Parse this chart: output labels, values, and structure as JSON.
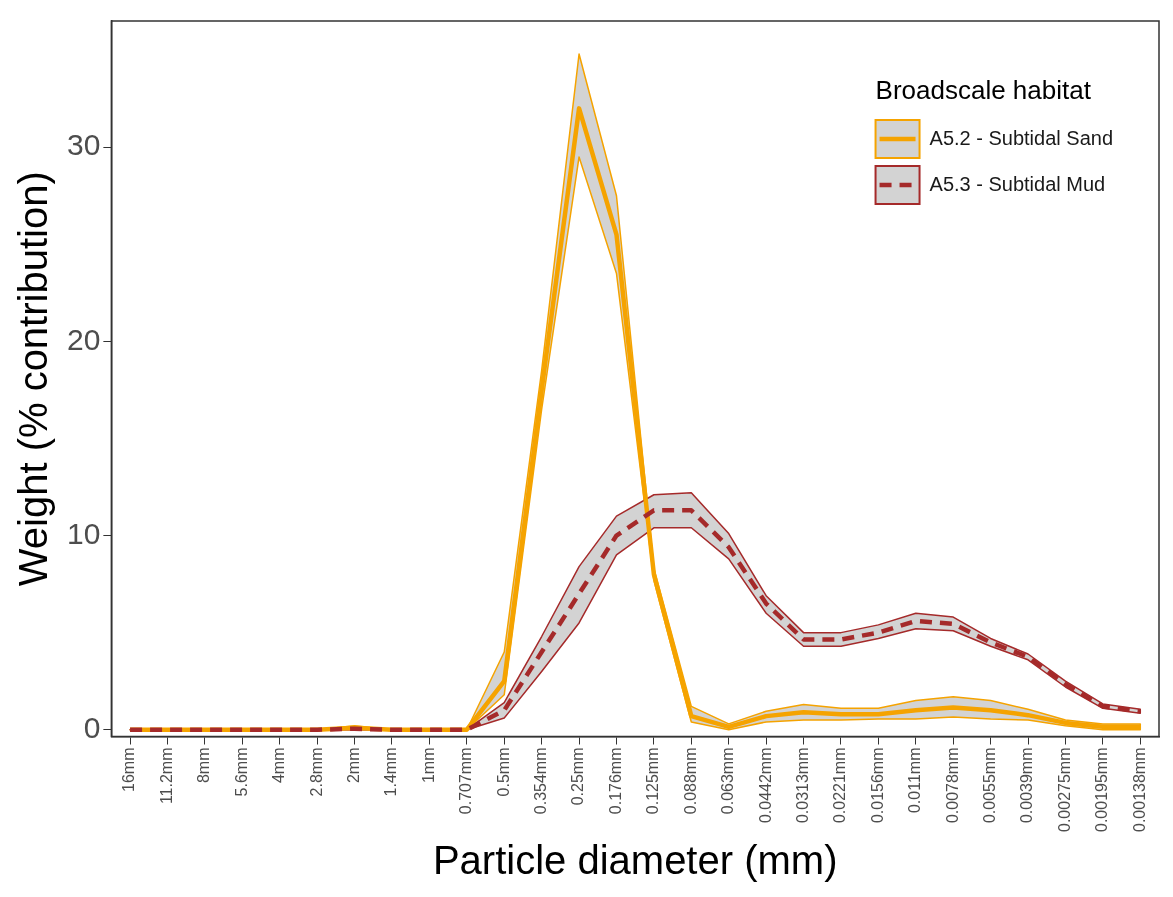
{
  "chart_data": {
    "type": "line",
    "xlabel": "Particle diameter (mm)",
    "ylabel": "Weight (% contribution)",
    "legend_title": "Broadscale habitat",
    "legend": "top right",
    "marker": "none",
    "categories": [
      "16mm",
      "11.2mm",
      "8mm",
      "5.6mm",
      "4mm",
      "2.8mm",
      "2mm",
      "1.4mm",
      "1mm",
      "0.707mm",
      "0.5mm",
      "0.354mm",
      "0.25mm",
      "0.176mm",
      "0.125mm",
      "0.088mm",
      "0.063mm",
      "0.0442mm",
      "0.0313mm",
      "0.0221mm",
      "0.0156mm",
      "0.011mm",
      "0.0078mm",
      "0.0055mm",
      "0.0039mm",
      "0.00275mm",
      "0.00195mm",
      "0.00138mm"
    ],
    "ylim": [
      -0.35,
      36.5
    ],
    "yticks": [
      0,
      10,
      20,
      30
    ],
    "series": [
      {
        "name": "A5.2 - Subtidal Sand",
        "color": "#f5a300",
        "line_style": "solid",
        "values": [
          0,
          0,
          0,
          0,
          0,
          0,
          0.1,
          0,
          0,
          0,
          2.5,
          17.5,
          32.0,
          25.5,
          8.0,
          0.7,
          0.15,
          0.7,
          0.9,
          0.8,
          0.8,
          1.0,
          1.15,
          1.0,
          0.75,
          0.35,
          0.15,
          0.15
        ],
        "lower": [
          0,
          0,
          0,
          0,
          0,
          0,
          0,
          0,
          0,
          0,
          1.8,
          16.5,
          29.5,
          23.5,
          7.7,
          0.4,
          0,
          0.4,
          0.5,
          0.5,
          0.55,
          0.55,
          0.65,
          0.55,
          0.5,
          0.2,
          0,
          0
        ],
        "upper": [
          0,
          0,
          0,
          0,
          0,
          0,
          0.2,
          0,
          0,
          0,
          4.0,
          18.5,
          34.8,
          27.5,
          8.3,
          1.2,
          0.3,
          0.95,
          1.3,
          1.1,
          1.1,
          1.5,
          1.7,
          1.5,
          1.05,
          0.5,
          0.3,
          0.3
        ]
      },
      {
        "name": "A5.3 - Subtidal Mud",
        "color": "#a52a2a",
        "line_style": "dashed",
        "values": [
          0,
          0,
          0,
          0,
          0,
          0,
          0.05,
          0,
          0,
          0,
          1.0,
          4.0,
          7.0,
          10.0,
          11.3,
          11.3,
          9.4,
          6.5,
          4.65,
          4.65,
          5.0,
          5.6,
          5.45,
          4.5,
          3.75,
          2.35,
          1.2,
          0.95
        ],
        "lower": [
          0,
          0,
          0,
          0,
          0,
          0,
          0,
          0,
          0,
          0,
          0.6,
          3.0,
          5.5,
          9.0,
          10.4,
          10.4,
          8.8,
          6.0,
          4.3,
          4.3,
          4.7,
          5.2,
          5.1,
          4.3,
          3.6,
          2.2,
          1.1,
          0.85
        ],
        "upper": [
          0,
          0,
          0,
          0,
          0,
          0,
          0.1,
          0,
          0,
          0,
          1.4,
          4.8,
          8.4,
          11.0,
          12.1,
          12.2,
          10.1,
          6.9,
          5.0,
          5.0,
          5.4,
          6.0,
          5.8,
          4.7,
          3.9,
          2.5,
          1.33,
          1.05
        ]
      }
    ]
  }
}
